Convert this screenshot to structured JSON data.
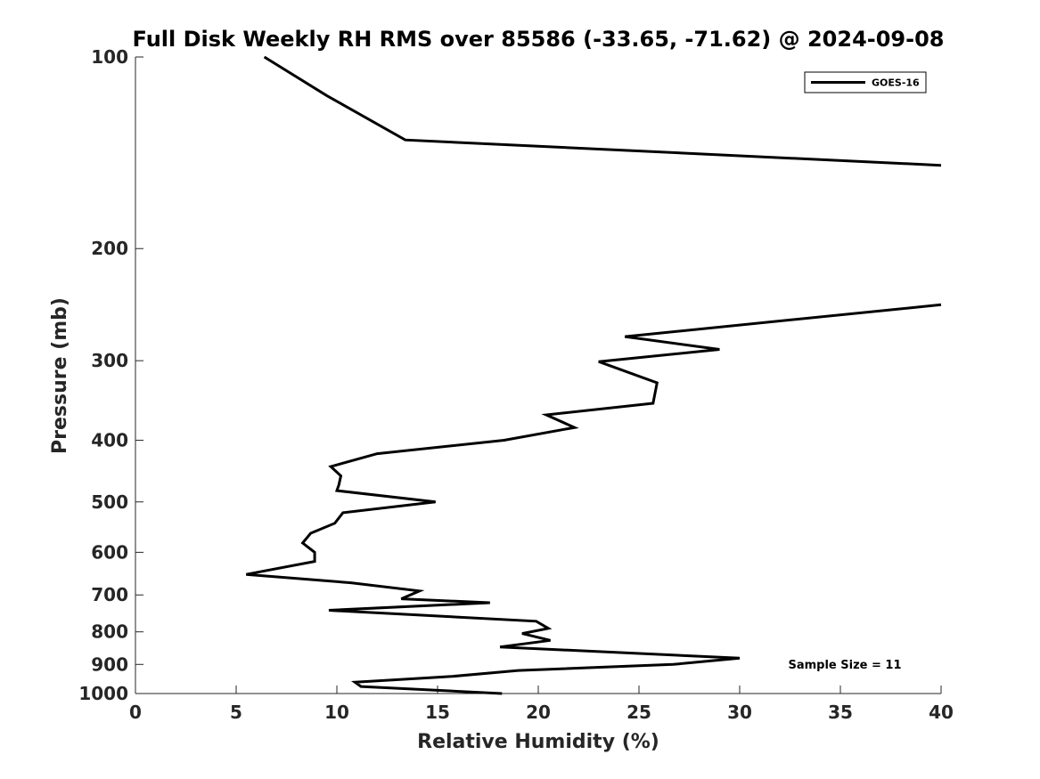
{
  "chart_data": {
    "type": "line",
    "title": "Full Disk Weekly RH RMS over 85586 (-33.65, -71.62) @ 2024-09-08",
    "xlabel": "Relative Humidity (%)",
    "ylabel": "Pressure (mb)",
    "xlim": [
      0,
      40
    ],
    "ylim": [
      1000,
      100
    ],
    "yscale": "log",
    "y_inverted": true,
    "x_ticks": [
      0,
      5,
      10,
      15,
      20,
      25,
      30,
      35,
      40
    ],
    "x_tick_labels": [
      "0",
      "5",
      "10",
      "15",
      "20",
      "25",
      "30",
      "35",
      "40"
    ],
    "y_ticks": [
      100,
      200,
      300,
      400,
      500,
      600,
      700,
      800,
      900,
      1000
    ],
    "y_tick_labels": [
      "100",
      "200",
      "300",
      "400",
      "500",
      "600",
      "700",
      "800",
      "900",
      "1000"
    ],
    "grid": false,
    "legend_position": "top-right",
    "annotation": "Sample Size = 11",
    "series": [
      {
        "name": "GOES-16",
        "color": "#000000",
        "segments": [
          [
            [
              6.4,
              100
            ],
            [
              9.5,
              115
            ],
            [
              13.4,
              135
            ],
            [
              40.0,
              148
            ]
          ],
          [
            [
              40.0,
              245
            ],
            [
              24.3,
              275
            ],
            [
              29.0,
              288
            ],
            [
              23.0,
              301
            ],
            [
              25.9,
              325
            ],
            [
              25.7,
              350
            ],
            [
              20.4,
              365
            ],
            [
              21.8,
              382
            ],
            [
              18.3,
              400
            ],
            [
              12.0,
              420
            ],
            [
              9.7,
              440
            ],
            [
              10.2,
              455
            ],
            [
              10.1,
              470
            ],
            [
              10.0,
              480
            ],
            [
              14.9,
              500
            ],
            [
              10.3,
              520
            ],
            [
              9.9,
              540
            ],
            [
              8.7,
              560
            ],
            [
              8.3,
              580
            ],
            [
              8.9,
              600
            ],
            [
              8.9,
              620
            ],
            [
              5.5,
              650
            ],
            [
              10.7,
              670
            ],
            [
              14.1,
              690
            ],
            [
              13.2,
              710
            ],
            [
              17.6,
              720
            ],
            [
              9.6,
              740
            ],
            [
              19.9,
              770
            ],
            [
              20.5,
              790
            ],
            [
              19.2,
              805
            ],
            [
              20.6,
              825
            ],
            [
              18.1,
              845
            ],
            [
              30.0,
              880
            ],
            [
              26.7,
              900
            ],
            [
              19.0,
              920
            ],
            [
              15.7,
              940
            ],
            [
              10.9,
              960
            ],
            [
              11.2,
              975
            ],
            [
              18.2,
              1000
            ]
          ]
        ]
      }
    ]
  }
}
